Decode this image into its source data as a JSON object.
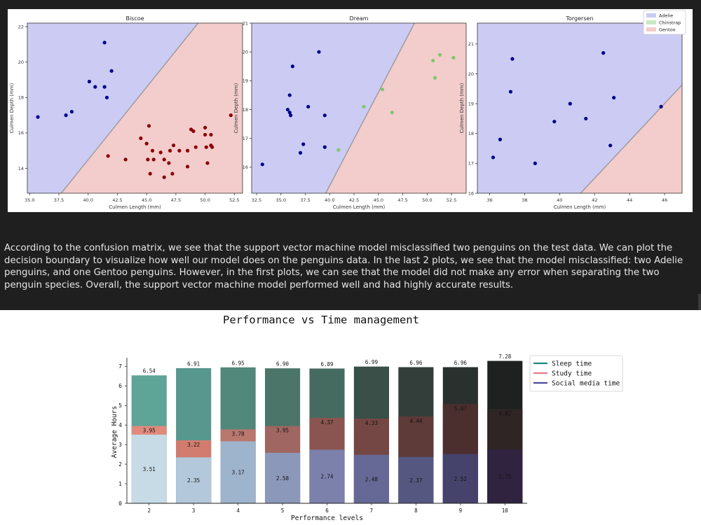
{
  "notebook": {
    "paragraph": "According to the confusion matrix, we see that the support vector machine model misclassified two penguins on the test data. We can plot the decision boundary to visualize how well our model does on the penguins data. In the last 2 plots, we see that the model misclassified: two Adelie penguins, and one Gentoo penguins. However, in the first plots, we can see that the model did not make any error when separating the two penguin species. Overall, the support vector machine model performed well and had highly accurate results."
  },
  "chart_data": [
    {
      "type": "scatter",
      "title": "Biscoe",
      "xlabel": "Culmen Length (mm)",
      "ylabel": "Culmen Depth (mm)",
      "xlim": [
        34.8,
        53.2
      ],
      "ylim": [
        12.6,
        22.2
      ],
      "xticks": [
        35.0,
        37.5,
        40.0,
        42.5,
        45.0,
        47.5,
        50.0,
        52.5
      ],
      "yticks": [
        14,
        16,
        18,
        20,
        22
      ],
      "decision_boundary": [
        [
          37.7,
          12.6
        ],
        [
          49.4,
          22.2
        ]
      ],
      "region_colors": {
        "left": "#cbcbf4",
        "right": "#f3cccc"
      },
      "series": [
        {
          "name": "Adelie",
          "color": "#00008b",
          "points": [
            [
              35.7,
              16.9
            ],
            [
              38.1,
              17.0
            ],
            [
              38.6,
              17.2
            ],
            [
              40.1,
              18.9
            ],
            [
              40.6,
              18.6
            ],
            [
              41.4,
              21.1
            ],
            [
              41.4,
              18.6
            ],
            [
              41.6,
              18.0
            ],
            [
              42.0,
              19.5
            ]
          ]
        },
        {
          "name": "Gentoo",
          "color": "#8b0000",
          "points": [
            [
              41.7,
              14.7
            ],
            [
              43.2,
              14.5
            ],
            [
              44.5,
              15.7
            ],
            [
              45.0,
              15.4
            ],
            [
              45.2,
              16.4
            ],
            [
              45.1,
              14.5
            ],
            [
              45.3,
              13.7
            ],
            [
              45.5,
              15.0
            ],
            [
              45.6,
              14.5
            ],
            [
              46.2,
              14.9
            ],
            [
              46.5,
              14.5
            ],
            [
              46.5,
              13.5
            ],
            [
              46.9,
              14.3
            ],
            [
              47.0,
              15.0
            ],
            [
              47.2,
              13.7
            ],
            [
              47.3,
              15.3
            ],
            [
              47.8,
              15.0
            ],
            [
              48.5,
              15.0
            ],
            [
              48.5,
              14.1
            ],
            [
              48.8,
              16.2
            ],
            [
              49.0,
              16.1
            ],
            [
              49.2,
              15.2
            ],
            [
              50.0,
              16.3
            ],
            [
              50.0,
              15.9
            ],
            [
              50.1,
              15.2
            ],
            [
              50.2,
              14.3
            ],
            [
              50.5,
              15.9
            ],
            [
              50.5,
              15.3
            ],
            [
              50.6,
              15.2
            ],
            [
              52.2,
              17.0
            ]
          ]
        }
      ]
    },
    {
      "type": "scatter",
      "title": "Dream",
      "xlabel": "Culmen Length (mm)",
      "ylabel": "Culmen Depth (mm)",
      "xlim": [
        32.0,
        54.0
      ],
      "ylim": [
        15.1,
        21.0
      ],
      "xticks": [
        32.5,
        35.0,
        37.5,
        40.0,
        42.5,
        45.0,
        47.5,
        50.0,
        52.5
      ],
      "yticks": [
        16,
        17,
        18,
        19,
        20,
        21
      ],
      "decision_boundary": [
        [
          39.6,
          15.1
        ],
        [
          48.7,
          21.0
        ]
      ],
      "region_colors": {
        "left": "#cbcbf4",
        "right": "#f3cccc"
      },
      "series": [
        {
          "name": "Adelie",
          "color": "#00008b",
          "points": [
            [
              33.1,
              16.1
            ],
            [
              35.7,
              18.0
            ],
            [
              35.9,
              17.9
            ],
            [
              35.9,
              18.5
            ],
            [
              36.0,
              17.8
            ],
            [
              36.2,
              19.5
            ],
            [
              37.0,
              16.5
            ],
            [
              37.3,
              16.8
            ],
            [
              37.8,
              18.1
            ],
            [
              38.9,
              20.0
            ],
            [
              39.5,
              17.8
            ],
            [
              39.5,
              16.7
            ]
          ]
        },
        {
          "name": "Chinstrap",
          "color": "#7ec86a",
          "points": [
            [
              40.9,
              16.6
            ],
            [
              43.5,
              18.1
            ],
            [
              45.4,
              18.7
            ],
            [
              46.4,
              17.9
            ],
            [
              50.6,
              19.7
            ],
            [
              50.8,
              19.1
            ],
            [
              51.3,
              19.9
            ],
            [
              52.7,
              19.8
            ]
          ]
        }
      ]
    },
    {
      "type": "scatter",
      "title": "Torgersen",
      "xlabel": "Culmen Length (mm)",
      "ylabel": "Culmen Depth (mm)",
      "xlim": [
        35.3,
        47.0
      ],
      "ylim": [
        16.0,
        21.7
      ],
      "xticks": [
        36,
        38,
        40,
        42,
        44,
        46
      ],
      "yticks": [
        16,
        17,
        18,
        19,
        20,
        21
      ],
      "decision_boundary": [
        [
          41.2,
          16.0
        ],
        [
          47.0,
          19.63
        ]
      ],
      "region_colors": {
        "left": "#cbcbf4",
        "right": "#f3cccc"
      },
      "series": [
        {
          "name": "Adelie",
          "color": "#00008b",
          "points": [
            [
              36.2,
              17.2
            ],
            [
              36.6,
              17.8
            ],
            [
              37.2,
              19.4
            ],
            [
              37.3,
              20.5
            ],
            [
              38.6,
              17.0
            ],
            [
              39.7,
              18.4
            ],
            [
              40.6,
              19.0
            ],
            [
              41.5,
              18.5
            ],
            [
              42.5,
              20.7
            ],
            [
              42.9,
              17.6
            ],
            [
              43.1,
              19.2
            ],
            [
              45.8,
              18.9
            ]
          ]
        }
      ]
    },
    {
      "type": "bar",
      "title": "Performance vs Time management",
      "xlabel": "Performance levels",
      "ylabel": "Average Hours",
      "ylim": [
        0,
        7.3
      ],
      "yticks": [
        0,
        1,
        2,
        3,
        4,
        5,
        6,
        7
      ],
      "categories": [
        "2",
        "3",
        "4",
        "5",
        "6",
        "7",
        "8",
        "9",
        "10"
      ],
      "series": [
        {
          "name": "Sleep time",
          "values": [
            6.54,
            6.91,
            6.95,
            6.9,
            6.89,
            6.99,
            6.96,
            6.96,
            7.28
          ],
          "colors": [
            "#5ea497",
            "#57978d",
            "#52877b",
            "#4a7568",
            "#456b60",
            "#3b4f49",
            "#333e3a",
            "#2a302e",
            "#1e2120"
          ]
        },
        {
          "name": "Study time",
          "values": [
            3.95,
            3.22,
            3.78,
            3.95,
            4.37,
            4.33,
            4.44,
            5.07,
            4.82
          ],
          "colors": [
            "#e08a7d",
            "#d17c6f",
            "#b9776e",
            "#a06661",
            "#8a5551",
            "#744744",
            "#5e3a38",
            "#4a2f2e",
            "#2f2524"
          ]
        },
        {
          "name": "Social media time",
          "values": [
            3.51,
            2.35,
            3.17,
            2.58,
            2.74,
            2.48,
            2.37,
            2.52,
            2.75
          ],
          "colors": [
            "#c7dbe6",
            "#b3c8da",
            "#9eb3cc",
            "#8b98ba",
            "#7b81ab",
            "#666996",
            "#565781",
            "#45426c",
            "#2f2340"
          ]
        }
      ],
      "legend_colors": [
        "#1b8a7c",
        "#e47a8a",
        "#4d4a9e"
      ],
      "legend_position": "upper-right"
    }
  ]
}
